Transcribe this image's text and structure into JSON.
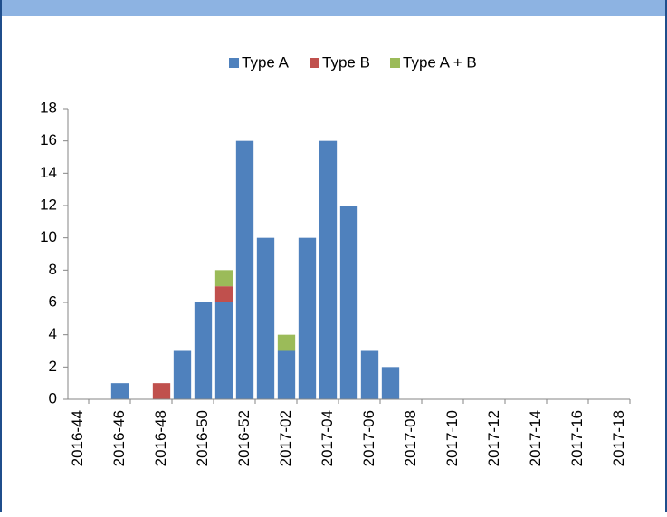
{
  "chart_data": {
    "type": "stacked-bar",
    "categories": [
      "2016-44",
      null,
      "2016-46",
      null,
      "2016-48",
      null,
      "2016-50",
      null,
      "2016-52",
      null,
      "2017-02",
      null,
      "2017-04",
      null,
      "2017-06",
      null,
      "2017-08",
      null,
      "2017-10",
      null,
      "2017-12",
      null,
      "2017-14",
      null,
      "2017-16",
      null,
      "2017-18"
    ],
    "series": [
      {
        "name": "Type A",
        "color": "#4f81bd",
        "values": [
          0,
          0,
          1,
          0,
          0,
          3,
          6,
          6,
          16,
          10,
          3,
          10,
          16,
          12,
          3,
          2,
          0,
          0,
          0,
          0,
          0,
          0,
          0,
          0,
          0,
          0,
          0
        ]
      },
      {
        "name": "Type B",
        "color": "#c0504d",
        "values": [
          0,
          0,
          0,
          0,
          1,
          0,
          0,
          1,
          0,
          0,
          0,
          0,
          0,
          0,
          0,
          0,
          0,
          0,
          0,
          0,
          0,
          0,
          0,
          0,
          0,
          0,
          0
        ]
      },
      {
        "name": "Type A + B",
        "color": "#9bbb59",
        "values": [
          0,
          0,
          0,
          0,
          0,
          0,
          0,
          1,
          0,
          0,
          1,
          0,
          0,
          0,
          0,
          0,
          0,
          0,
          0,
          0,
          0,
          0,
          0,
          0,
          0,
          0,
          0
        ]
      }
    ],
    "ylim": [
      0,
      18
    ],
    "yticks": [
      0,
      2,
      4,
      6,
      8,
      10,
      12,
      14,
      16,
      18
    ],
    "legend": "top"
  }
}
